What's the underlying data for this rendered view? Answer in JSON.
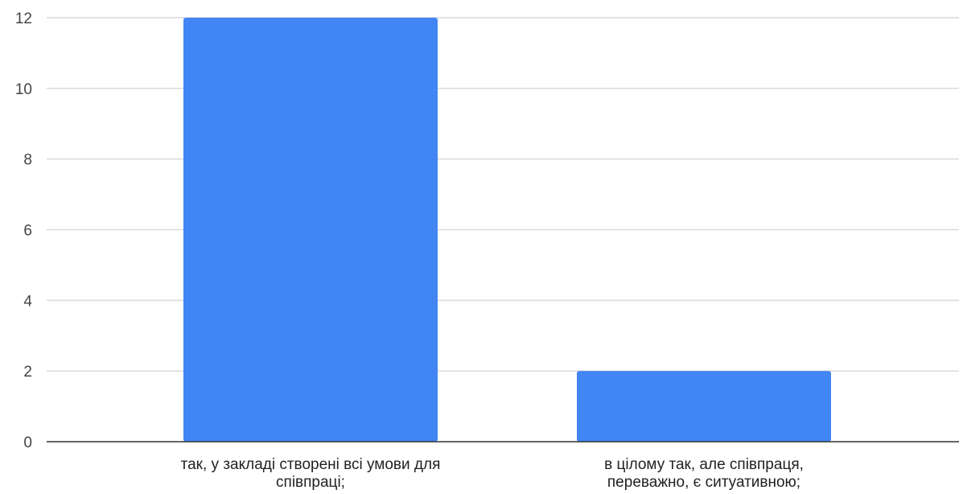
{
  "chart_data": {
    "type": "bar",
    "categories": [
      [
        "так, у закладі створені всі умови для",
        "співпраці;"
      ],
      [
        "в цілому так, але співпраця,",
        "переважно, є ситуативною;"
      ]
    ],
    "values": [
      12,
      2
    ],
    "ylim": [
      0,
      12
    ],
    "yticks": [
      "0",
      "2",
      "4",
      "6",
      "8",
      "10",
      "12"
    ],
    "title": "",
    "xlabel": "",
    "ylabel": "",
    "grid": true,
    "legend": "none",
    "colors": {
      "bar": "#4285f4",
      "grid": "#d9d9d9",
      "axis": "#333333"
    }
  }
}
